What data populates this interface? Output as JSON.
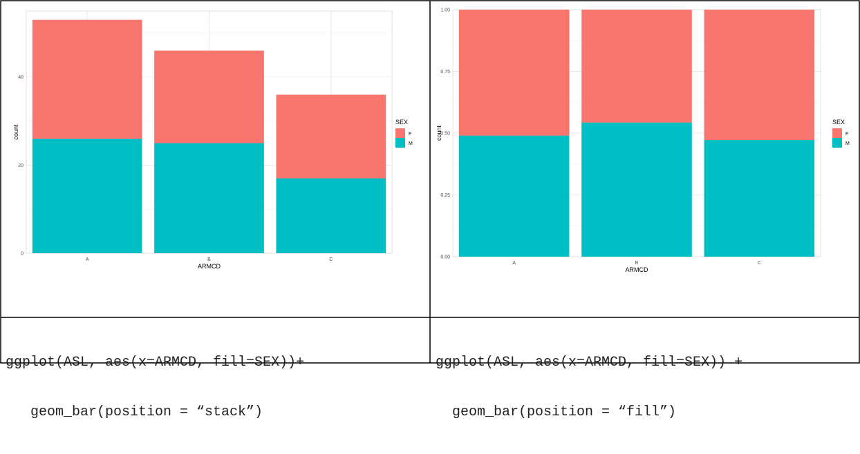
{
  "chart_data": [
    {
      "type": "bar",
      "stacking": "stack",
      "categories": [
        "A",
        "B",
        "C"
      ],
      "series": [
        {
          "name": "F",
          "values": [
            27,
            21,
            19
          ],
          "color": "#F8766D"
        },
        {
          "name": "M",
          "values": [
            26,
            25,
            17
          ],
          "color": "#00BFC4"
        }
      ],
      "xlabel": "ARMCD",
      "ylabel": "count",
      "ylim": [
        0,
        55
      ],
      "yticks": [
        "0",
        "20",
        "40"
      ],
      "ytick_values": [
        0,
        20,
        40
      ],
      "legend_title": "SEX",
      "legend_position": "right",
      "grid": true
    },
    {
      "type": "bar",
      "stacking": "fill",
      "categories": [
        "A",
        "B",
        "C"
      ],
      "series": [
        {
          "name": "F",
          "values": [
            0.51,
            0.457,
            0.528
          ],
          "color": "#F8766D"
        },
        {
          "name": "M",
          "values": [
            0.49,
            0.543,
            0.472
          ],
          "color": "#00BFC4"
        }
      ],
      "xlabel": "ARMCD",
      "ylabel": "count",
      "ylim": [
        0,
        1
      ],
      "yticks": [
        "0.00",
        "0.25",
        "0.50",
        "0.75",
        "1.00"
      ],
      "ytick_values": [
        0,
        0.25,
        0.5,
        0.75,
        1
      ],
      "legend_title": "SEX",
      "legend_position": "right",
      "grid": true
    }
  ],
  "code": [
    {
      "line1": "ggplot(ASL, aes(x=ARMCD, fill=SEX))+",
      "line2": "   geom_bar(position = “stack”)"
    },
    {
      "line1": "ggplot(ASL, aes(x=ARMCD, fill=SEX)) +",
      "line2": "  geom_bar(position = “fill”)"
    }
  ]
}
